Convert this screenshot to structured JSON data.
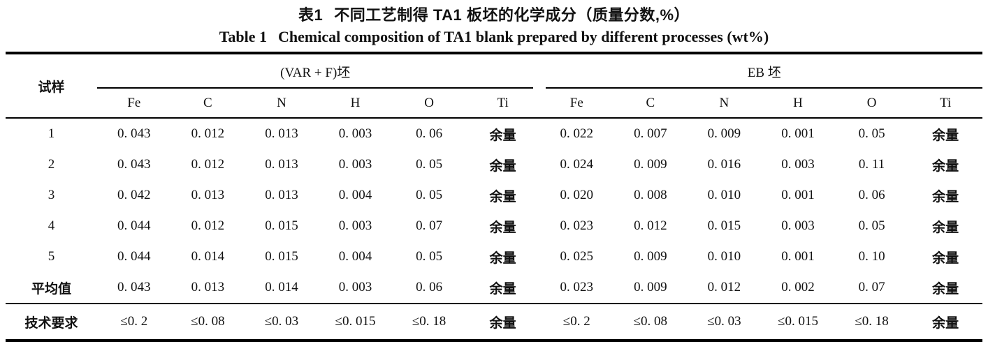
{
  "colors": {
    "text": "#111111",
    "background": "#ffffff",
    "rule": "#000000"
  },
  "caption": {
    "zh_label": "表1",
    "zh_text": "不同工艺制得 TA1 板坯的化学成分（质量分数,%）",
    "en_label": "Table 1",
    "en_text": "Chemical composition of TA1 blank prepared by different processes (wt%)"
  },
  "table": {
    "sample_header": "试样",
    "groups": [
      {
        "label": "(VAR + F)坯",
        "columns": [
          "Fe",
          "C",
          "N",
          "H",
          "O",
          "Ti"
        ]
      },
      {
        "label": "EB 坯",
        "columns": [
          "Fe",
          "C",
          "N",
          "H",
          "O",
          "Ti"
        ]
      }
    ],
    "rows": [
      {
        "sample": "1",
        "varf": [
          "0. 043",
          "0. 012",
          "0. 013",
          "0. 003",
          "0. 06",
          "余量"
        ],
        "eb": [
          "0. 022",
          "0. 007",
          "0. 009",
          "0. 001",
          "0. 05",
          "余量"
        ]
      },
      {
        "sample": "2",
        "varf": [
          "0. 043",
          "0. 012",
          "0. 013",
          "0. 003",
          "0. 05",
          "余量"
        ],
        "eb": [
          "0. 024",
          "0. 009",
          "0. 016",
          "0. 003",
          "0. 11",
          "余量"
        ]
      },
      {
        "sample": "3",
        "varf": [
          "0. 042",
          "0. 013",
          "0. 013",
          "0. 004",
          "0. 05",
          "余量"
        ],
        "eb": [
          "0. 020",
          "0. 008",
          "0. 010",
          "0. 001",
          "0. 06",
          "余量"
        ]
      },
      {
        "sample": "4",
        "varf": [
          "0. 044",
          "0. 012",
          "0. 015",
          "0. 003",
          "0. 07",
          "余量"
        ],
        "eb": [
          "0. 023",
          "0. 012",
          "0. 015",
          "0. 003",
          "0. 05",
          "余量"
        ]
      },
      {
        "sample": "5",
        "varf": [
          "0. 044",
          "0. 014",
          "0. 015",
          "0. 004",
          "0. 05",
          "余量"
        ],
        "eb": [
          "0. 025",
          "0. 009",
          "0. 010",
          "0. 001",
          "0. 10",
          "余量"
        ]
      },
      {
        "sample": "平均值",
        "varf": [
          "0. 043",
          "0. 013",
          "0. 014",
          "0. 003",
          "0. 06",
          "余量"
        ],
        "eb": [
          "0. 023",
          "0. 009",
          "0. 012",
          "0. 002",
          "0. 07",
          "余量"
        ]
      },
      {
        "sample": "技术要求",
        "varf": [
          "≤0. 2",
          "≤0. 08",
          "≤0. 03",
          "≤0. 015",
          "≤0. 18",
          "余量"
        ],
        "eb": [
          "≤0. 2",
          "≤0. 08",
          "≤0. 03",
          "≤0. 015",
          "≤0. 18",
          "余量"
        ]
      }
    ]
  }
}
